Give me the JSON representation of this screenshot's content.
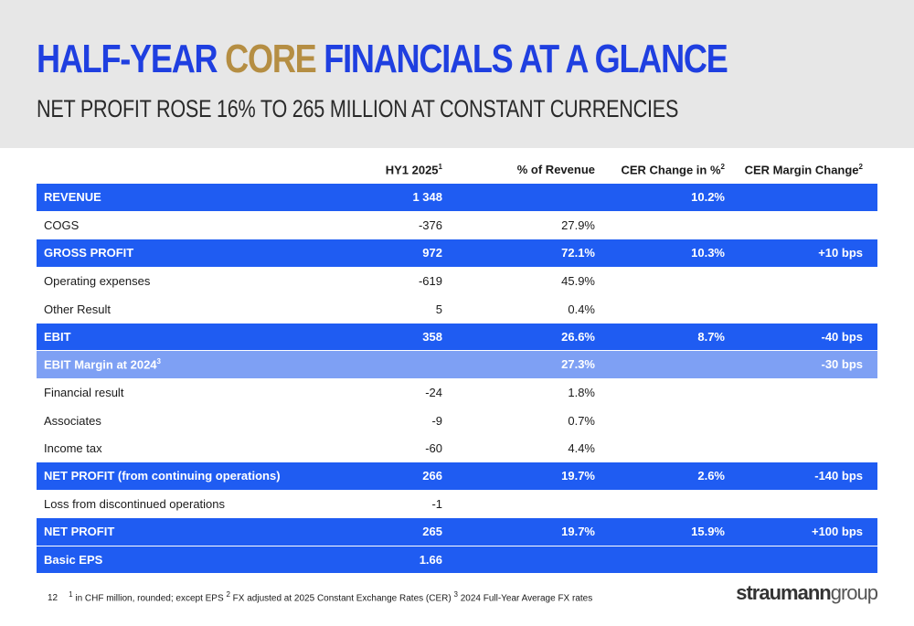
{
  "slide": {
    "title_part1": "HALF-YEAR ",
    "title_core": "CORE",
    "title_part2": " FINANCIALS AT A GLANCE",
    "subtitle": "NET PROFIT ROSE 16% TO 265 MILLION AT CONSTANT CURRENCIES"
  },
  "table": {
    "headers": {
      "hy1": "HY1 2025",
      "hy1_sup": "1",
      "pct_revenue": "% of Revenue",
      "cer_change": "CER Change in %",
      "cer_change_sup": "2",
      "cer_margin": "CER Margin Change",
      "cer_margin_sup": "2"
    },
    "rows": [
      {
        "label": "REVENUE",
        "sup": "",
        "hy1": "1 348",
        "pct": "",
        "cer": "10.2%",
        "margin": "",
        "style": "blue"
      },
      {
        "label": "COGS",
        "sup": "",
        "hy1": "-376",
        "pct": "27.9%",
        "cer": "",
        "margin": "",
        "style": "plain"
      },
      {
        "label": "GROSS PROFIT",
        "sup": "",
        "hy1": "972",
        "pct": "72.1%",
        "cer": "10.3%",
        "margin": "+10 bps",
        "style": "blue"
      },
      {
        "label": "Operating expenses",
        "sup": "",
        "hy1": "-619",
        "pct": "45.9%",
        "cer": "",
        "margin": "",
        "style": "plain"
      },
      {
        "label": "Other Result",
        "sup": "",
        "hy1": "5",
        "pct": "0.4%",
        "cer": "",
        "margin": "",
        "style": "plain"
      },
      {
        "label": "EBIT",
        "sup": "",
        "hy1": "358",
        "pct": "26.6%",
        "cer": "8.7%",
        "margin": "-40 bps",
        "style": "blue"
      },
      {
        "label": "EBIT Margin at 2024",
        "sup": "3",
        "hy1": "",
        "pct": "27.3%",
        "cer": "",
        "margin": "-30 bps",
        "style": "light"
      },
      {
        "label": "Financial result",
        "sup": "",
        "hy1": "-24",
        "pct": "1.8%",
        "cer": "",
        "margin": "",
        "style": "plain"
      },
      {
        "label": "Associates",
        "sup": "",
        "hy1": "-9",
        "pct": "0.7%",
        "cer": "",
        "margin": "",
        "style": "plain"
      },
      {
        "label": "Income tax",
        "sup": "",
        "hy1": "-60",
        "pct": "4.4%",
        "cer": "",
        "margin": "",
        "style": "plain"
      },
      {
        "label": "NET PROFIT (from continuing operations)",
        "sup": "",
        "hy1": "266",
        "pct": "19.7%",
        "cer": "2.6%",
        "margin": "-140 bps",
        "style": "blue"
      },
      {
        "label": "Loss from discontinued operations",
        "sup": "",
        "hy1": "-1",
        "pct": "",
        "cer": "",
        "margin": "",
        "style": "plain"
      },
      {
        "label": "NET PROFIT",
        "sup": "",
        "hy1": "265",
        "pct": "19.7%",
        "cer": "15.9%",
        "margin": "+100 bps",
        "style": "blue"
      },
      {
        "label": "Basic EPS",
        "sup": "",
        "hy1": "1.66",
        "pct": "",
        "cer": "",
        "margin": "",
        "style": "blue"
      }
    ]
  },
  "footer": {
    "page_number": "12",
    "note1_sup": "1",
    "note1": " in CHF million, rounded; except EPS  ",
    "note2_sup": "2",
    "note2": " FX adjusted at 2025 Constant Exchange Rates (CER)  ",
    "note3_sup": "3",
    "note3": " 2024 Full-Year Average FX rates"
  },
  "logo": {
    "bold_part": "straumann",
    "light_part": "group"
  },
  "colors": {
    "brand_blue": "#1f5cf2",
    "title_blue": "#1f3fe0",
    "light_blue": "#7ea0f4",
    "core_gold": "#b58e43",
    "header_grey": "#e7e7e7"
  }
}
